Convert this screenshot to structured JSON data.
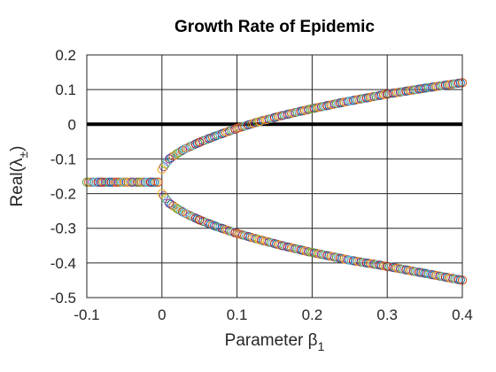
{
  "chart_data": {
    "type": "scatter",
    "title": "Growth Rate of Epidemic",
    "xlabel": {
      "text": "Parameter β",
      "sub": "1"
    },
    "ylabel": {
      "text": "Real(λ",
      "sub": "±",
      "suffix": ")"
    },
    "xlim": [
      -0.1,
      0.4
    ],
    "ylim": [
      -0.5,
      0.2
    ],
    "xticks": [
      -0.1,
      0,
      0.1,
      0.2,
      0.3,
      0.4
    ],
    "xtick_labels": [
      "-0.1",
      "0",
      "0.1",
      "0.2",
      "0.3",
      "0.4"
    ],
    "yticks": [
      -0.5,
      -0.4,
      -0.3,
      -0.2,
      -0.1,
      0,
      0.1,
      0.2
    ],
    "ytick_labels": [
      "-0.5",
      "-0.4",
      "-0.3",
      "-0.2",
      "-0.1",
      "0",
      "0.1",
      "0.2"
    ],
    "grid": true,
    "zero_line": {
      "y": 0,
      "color": "#000000"
    },
    "marker": "circle-open",
    "marker_colors": [
      "#0072BD",
      "#D95319",
      "#EDB120",
      "#7E2F8E",
      "#77AC30",
      "#4DBEEE",
      "#A2142F"
    ],
    "series": [
      {
        "x": [
          -0.1,
          -0.09,
          -0.08,
          -0.07,
          -0.06,
          -0.05,
          -0.04,
          -0.03,
          -0.02,
          -0.015,
          -0.01,
          -0.005
        ],
        "values": [
          -0.167,
          -0.167,
          -0.167,
          -0.167,
          -0.167,
          -0.167,
          -0.167,
          -0.167,
          -0.167,
          -0.167,
          -0.167,
          -0.167
        ]
      },
      {
        "x": [
          0,
          0.01,
          0.02,
          0.03,
          0.05,
          0.07,
          0.1,
          0.13,
          0.16,
          0.2,
          0.25,
          0.3,
          0.35,
          0.4
        ],
        "values": [
          -0.13,
          -0.1,
          -0.085,
          -0.072,
          -0.052,
          -0.035,
          -0.012,
          0.008,
          0.025,
          0.045,
          0.067,
          0.087,
          0.104,
          0.12
        ]
      },
      {
        "x": [
          0,
          0.01,
          0.02,
          0.03,
          0.05,
          0.07,
          0.1,
          0.13,
          0.16,
          0.2,
          0.25,
          0.3,
          0.35,
          0.4
        ],
        "values": [
          -0.2,
          -0.228,
          -0.243,
          -0.256,
          -0.276,
          -0.293,
          -0.315,
          -0.333,
          -0.35,
          -0.37,
          -0.392,
          -0.41,
          -0.43,
          -0.45
        ]
      }
    ]
  }
}
